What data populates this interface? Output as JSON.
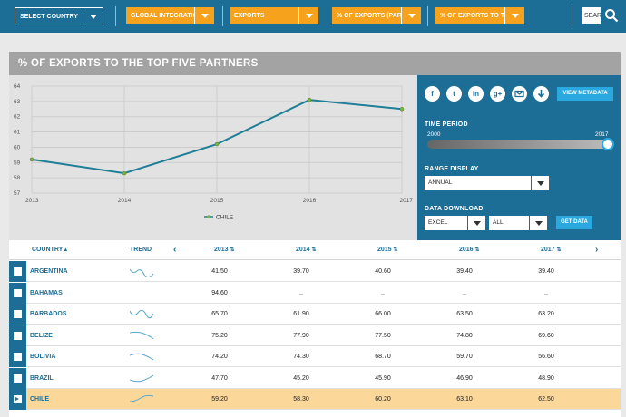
{
  "topbar": {
    "dropdowns": [
      {
        "label": "SELECT COUNTRY",
        "style": "dark"
      },
      {
        "label": "GLOBAL INTEGRATION",
        "style": "orange"
      },
      {
        "label": "EXPORTS",
        "style": "orange"
      },
      {
        "label": "% OF EXPORTS (PART...",
        "style": "orange"
      },
      {
        "label": "% OF EXPORTS TO THE ...",
        "style": "orange"
      }
    ],
    "search_placeholder": "SEARCH"
  },
  "panel": {
    "title": "% OF EXPORTS TO THE TOP FIVE PARTNERS"
  },
  "chart_data": {
    "type": "line",
    "x": [
      "2013",
      "2014",
      "2015",
      "2016",
      "2017"
    ],
    "series": [
      {
        "name": "CHILE",
        "values": [
          59.2,
          58.3,
          60.2,
          63.1,
          62.5
        ],
        "color": "#1f7f99"
      }
    ],
    "y_ticks": [
      "64",
      "63",
      "62",
      "61",
      "60",
      "59",
      "58",
      "57"
    ],
    "ylim": [
      57,
      64
    ],
    "grid": true,
    "legend": "bottom-center"
  },
  "right_panel": {
    "social_icons": [
      "f",
      "t",
      "in",
      "g+",
      "mail",
      "dl"
    ],
    "view_metadata": "VIEW METADATA",
    "time_period_label": "TIME PERIOD",
    "time_start": "2000",
    "time_end": "2017",
    "time_fraction": 1.0,
    "range_display_label": "RANGE DISPLAY",
    "range_display_value": "ANNUAL",
    "data_download_label": "DATA DOWNLOAD",
    "format_value": "EXCEL",
    "scope_value": "ALL",
    "get_data": "GET DATA"
  },
  "table": {
    "headers": {
      "country": "COUNTRY",
      "trend": "TREND",
      "years": [
        "2013",
        "2014",
        "2015",
        "2016",
        "2017"
      ]
    },
    "rows": [
      {
        "country": "ARGENTINA",
        "values": [
          "41.50",
          "39.70",
          "40.60",
          "39.40",
          "39.40"
        ],
        "selected": false
      },
      {
        "country": "BAHAMAS",
        "values": [
          "94.60",
          "..",
          "..",
          "..",
          ".."
        ],
        "selected": false
      },
      {
        "country": "BARBADOS",
        "values": [
          "65.70",
          "61.90",
          "66.00",
          "63.50",
          "63.20"
        ],
        "selected": false
      },
      {
        "country": "BELIZE",
        "values": [
          "75.20",
          "77.90",
          "77.50",
          "74.80",
          "69.60"
        ],
        "selected": false
      },
      {
        "country": "BOLIVIA",
        "values": [
          "74.20",
          "74.30",
          "68.70",
          "59.70",
          "56.60"
        ],
        "selected": false
      },
      {
        "country": "BRAZIL",
        "values": [
          "47.70",
          "45.20",
          "45.90",
          "46.90",
          "48.90"
        ],
        "selected": false
      },
      {
        "country": "CHILE",
        "values": [
          "59.20",
          "58.30",
          "60.20",
          "63.10",
          "62.50"
        ],
        "selected": true
      }
    ]
  },
  "colors": {
    "primary": "#1d6e96",
    "accent": "#f6a21c",
    "highlight": "#fcd79a",
    "button": "#2aa9e0"
  }
}
